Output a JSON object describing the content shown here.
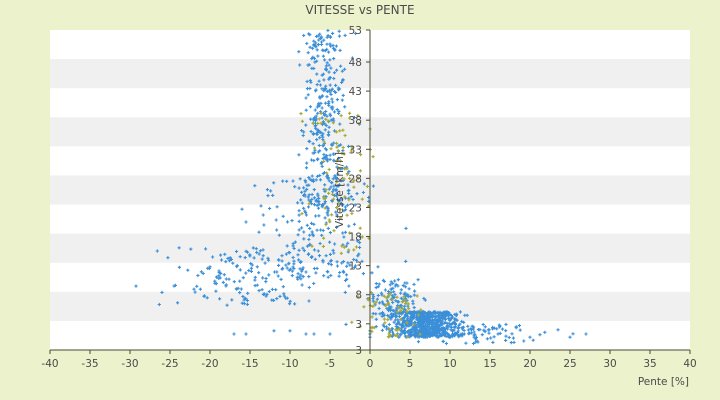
{
  "chart_data": {
    "type": "scatter",
    "title": "VITESSE vs PENTE",
    "xlabel": "Pente [%]",
    "ylabel": "Vitesse [km/h]",
    "xlim": [
      -40,
      40
    ],
    "ylim": [
      3,
      53
    ],
    "x_ticks": [
      "-40",
      "-35",
      "-30",
      "-25",
      "-20",
      "-15",
      "-10",
      "-5",
      "0",
      "5",
      "10",
      "15",
      "20",
      "25",
      "30",
      "35",
      "40"
    ],
    "y_ticks": [
      "3",
      "3",
      "8",
      "13",
      "18",
      "23",
      "28",
      "33",
      "38",
      "43",
      "48",
      "53"
    ],
    "grid": "horizontal-bands",
    "colors": {
      "background": "#ecf2cc",
      "plot_band_light": "#ffffff",
      "plot_band_dark": "#f0f0f0",
      "series_primary": "#3b8fd8",
      "series_secondary": "#a8a830",
      "axis": "#4a4a30"
    },
    "series": [
      {
        "color": "#3b8fd8",
        "clusters": [
          {
            "x_mean": -5.5,
            "x_sd": 1.4,
            "y_min": 25,
            "y_max": 53,
            "count": 340
          },
          {
            "x_mean": -7,
            "x_sd": 3.5,
            "y_min": 14,
            "y_max": 30,
            "count": 220
          },
          {
            "x_mean": -15,
            "x_sd": 5,
            "y_min": 10,
            "y_max": 19,
            "count": 150
          },
          {
            "x_mean": 7,
            "x_sd": 2.2,
            "y_min": 5,
            "y_max": 9,
            "count": 700
          },
          {
            "x_mean": 3,
            "x_sd": 1.5,
            "y_min": 8,
            "y_max": 14,
            "count": 120
          },
          {
            "x_mean": 14,
            "x_sd": 3.5,
            "y_min": 4,
            "y_max": 7,
            "count": 80
          }
        ],
        "points": [
          {
            "x": -26,
            "y": 12
          },
          {
            "x": -24.5,
            "y": 13
          },
          {
            "x": -22,
            "y": 12.5
          },
          {
            "x": -20,
            "y": 16
          },
          {
            "x": -18,
            "y": 13
          },
          {
            "x": -17,
            "y": 5.5
          },
          {
            "x": -15.5,
            "y": 5.5
          },
          {
            "x": -16,
            "y": 25
          },
          {
            "x": -15.5,
            "y": 23
          },
          {
            "x": -12,
            "y": 6
          },
          {
            "x": -10,
            "y": 6
          },
          {
            "x": -8,
            "y": 5.5
          },
          {
            "x": -7,
            "y": 5.5
          },
          {
            "x": -5,
            "y": 5.5
          },
          {
            "x": -3,
            "y": 7
          },
          {
            "x": 0,
            "y": 6
          },
          {
            "x": 0,
            "y": 5.5
          },
          {
            "x": 0,
            "y": 5
          },
          {
            "x": 1,
            "y": 16
          },
          {
            "x": 4.5,
            "y": 22
          },
          {
            "x": 16,
            "y": 5.5
          },
          {
            "x": 17,
            "y": 7
          },
          {
            "x": 20,
            "y": 5
          },
          {
            "x": 25,
            "y": 5
          },
          {
            "x": 27,
            "y": 5.5
          }
        ]
      },
      {
        "color": "#a8a830",
        "clusters": [
          {
            "x_mean": -3.5,
            "x_sd": 2,
            "y_min": 18,
            "y_max": 40,
            "count": 90
          },
          {
            "x_mean": 3,
            "x_sd": 2,
            "y_min": 5,
            "y_max": 12,
            "count": 60
          }
        ],
        "points": []
      }
    ]
  }
}
